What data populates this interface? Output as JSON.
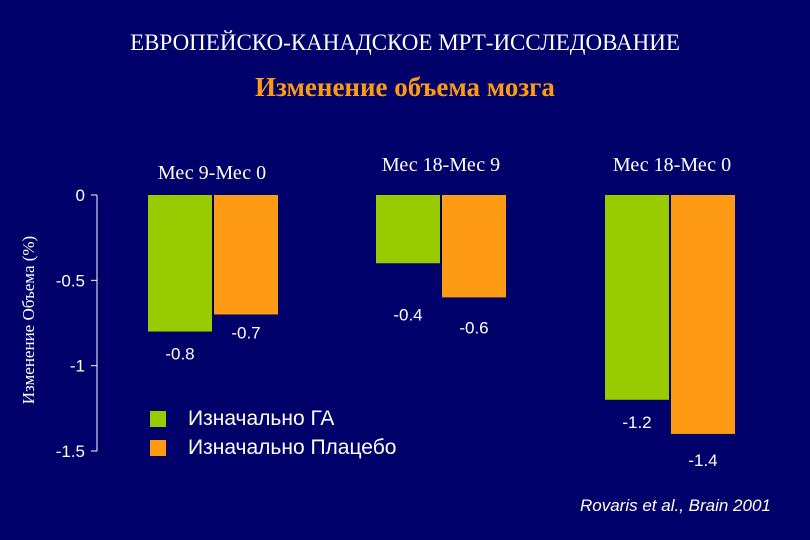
{
  "header": {
    "title": "ЕВРОПЕЙСКО-КАНАДСКОЕ МРТ-ИССЛЕДОВАНИЕ",
    "subtitle": "Изменение объема мозга"
  },
  "colors": {
    "background": "#00006b",
    "series_ga": "#99cc00",
    "series_placebo": "#ff9a14",
    "subtitle": "#ff9a14"
  },
  "chart_data": {
    "type": "bar",
    "ylabel": "Изменение Объема (%)",
    "ylim": [
      -1.5,
      0
    ],
    "yticks": [
      0,
      -0.5,
      -1,
      -1.5
    ],
    "ytick_labels": [
      "0",
      "-0.5",
      "-1",
      "-1.5"
    ],
    "categories": [
      "Мес 9-Мес 0",
      "Мес 18-Мес 9",
      "Мес 18-Мес 0"
    ],
    "series": [
      {
        "name": "Изначально ГА",
        "color": "#99cc00",
        "values": [
          -0.8,
          -0.4,
          -1.2
        ],
        "labels": [
          "-0.8",
          "-0.4",
          "-1.2"
        ]
      },
      {
        "name": "Изначально Плацебо",
        "color": "#ff9a14",
        "values": [
          -0.7,
          -0.6,
          -1.4
        ],
        "labels": [
          "-0.7",
          "-0.6",
          "-1.4"
        ]
      }
    ],
    "legend_position": "bottom-left"
  },
  "citation": "Rovaris et al., Brain 2001"
}
